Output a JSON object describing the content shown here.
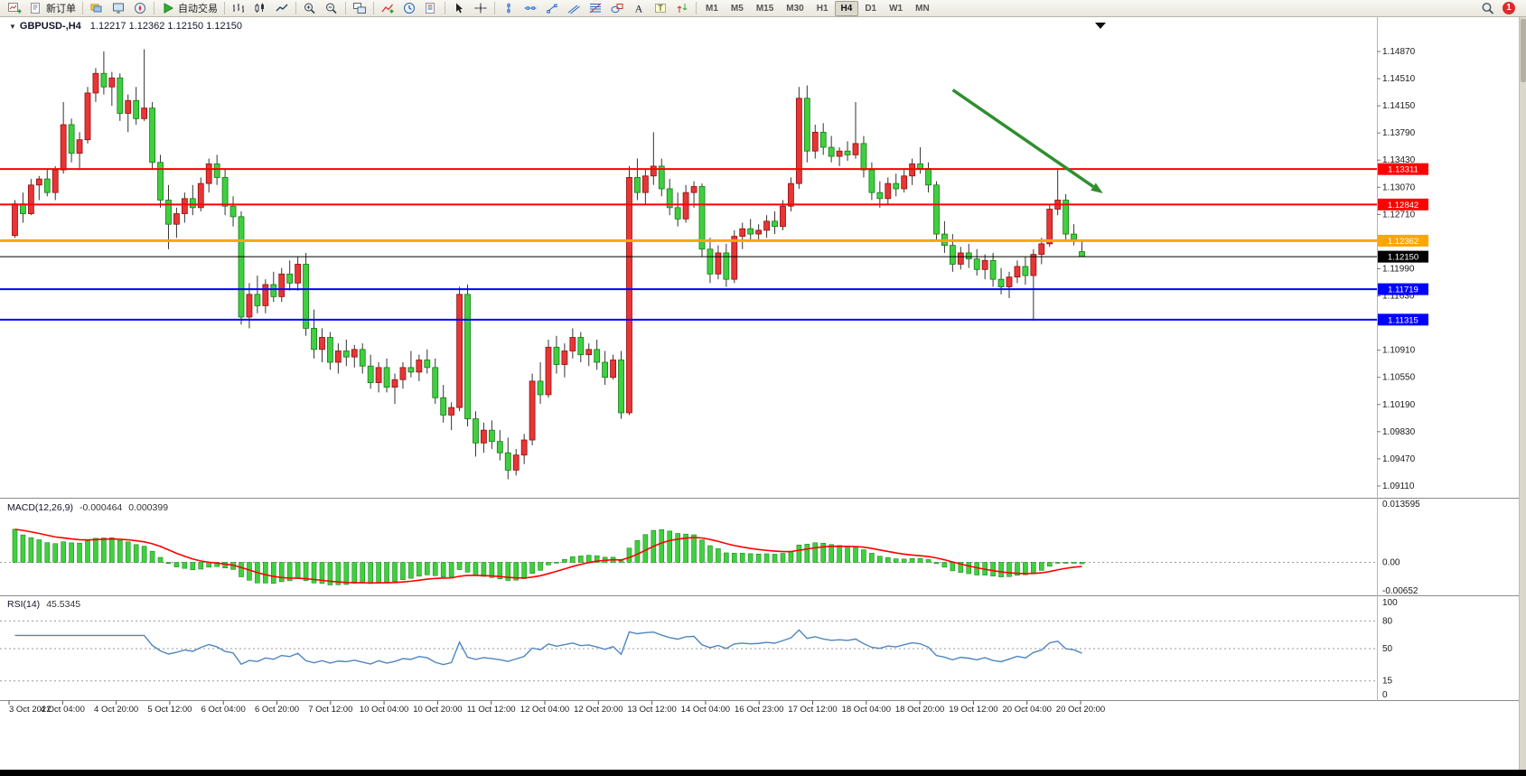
{
  "toolbar": {
    "groups": [
      [
        {
          "name": "new-chart",
          "icon": "chart-plus"
        },
        {
          "name": "new-order",
          "icon": "order-form",
          "label": "新订单"
        }
      ],
      [
        {
          "name": "profiles",
          "icon": "layers"
        },
        {
          "name": "market-watch",
          "icon": "monitor"
        },
        {
          "name": "navigator",
          "icon": "compass"
        }
      ],
      [
        {
          "name": "autotrading",
          "icon": "play",
          "label": "自动交易"
        }
      ],
      [
        {
          "name": "bar-chart",
          "icon": "bars"
        },
        {
          "name": "candlestick-chart",
          "icon": "candles"
        },
        {
          "name": "line-chart",
          "icon": "line"
        }
      ],
      [
        {
          "name": "zoom-in",
          "icon": "zoom-in"
        },
        {
          "name": "zoom-out",
          "icon": "zoom-out"
        }
      ],
      [
        {
          "name": "tile-windows",
          "icon": "tile"
        }
      ],
      [
        {
          "name": "indicator-list",
          "icon": "indicator"
        },
        {
          "name": "periods",
          "icon": "clock"
        },
        {
          "name": "templates",
          "icon": "template"
        }
      ],
      [
        {
          "name": "cursor",
          "icon": "cursor"
        },
        {
          "name": "crosshair",
          "icon": "crosshair"
        }
      ],
      [
        {
          "name": "vertical-line",
          "icon": "vline"
        },
        {
          "name": "horizontal-line",
          "icon": "hline"
        },
        {
          "name": "trendline",
          "icon": "trendline"
        },
        {
          "name": "equidistant-channel",
          "icon": "channel"
        },
        {
          "name": "fibonacci",
          "icon": "fibo"
        },
        {
          "name": "shapes",
          "icon": "shapes"
        },
        {
          "name": "text",
          "icon": "text-a"
        },
        {
          "name": "text-label",
          "icon": "text-t"
        },
        {
          "name": "arrows",
          "icon": "arrow-glyph"
        }
      ]
    ],
    "timeframes": {
      "labels": [
        "M1",
        "M5",
        "M15",
        "M30",
        "H1",
        "H4",
        "D1",
        "W1",
        "MN"
      ],
      "active": "H4"
    },
    "search": {
      "name": "search",
      "icon": "search"
    },
    "notification_count": "1"
  },
  "chart": {
    "title": "GBPUSD-,H4",
    "ohlc_text": "1.12217 1.12362 1.12150 1.12150"
  },
  "chart_data": {
    "type": "candlestick",
    "symbol": "GBPUSD-",
    "timeframe": "H4",
    "colors": {
      "bull": "#e83535",
      "bull_stroke": "#8f1010",
      "bear": "#3fd03f",
      "bear_stroke": "#157a15",
      "wick": "#333333",
      "macd_hist": "#3fd03f",
      "macd_hist_stroke": "#1e8a1e",
      "macd_signal": "#ff0000",
      "rsi_line": "#4f86c0",
      "arrow": "#2f8f2f"
    },
    "price_axis": {
      "labels": [
        "1.14870",
        "1.14510",
        "1.14150",
        "1.13790",
        "1.13430",
        "1.13070",
        "1.12710",
        "1.11990",
        "1.11630",
        "1.10910",
        "1.10550",
        "1.10190",
        "1.09830",
        "1.09470",
        "1.09110"
      ]
    },
    "hlines": [
      {
        "label": "1.13311",
        "price": 1.13311,
        "color": "#ff0000",
        "width": 2
      },
      {
        "label": "1.12842",
        "price": 1.12842,
        "color": "#ff0000",
        "width": 2
      },
      {
        "label": "1.12362",
        "price": 1.12362,
        "color": "#ffa500",
        "width": 3
      },
      {
        "label": "1.12150",
        "price": 1.1215,
        "color": "#000000",
        "width": 1
      },
      {
        "label": "1.11719",
        "price": 1.11719,
        "color": "#0000ff",
        "width": 2
      },
      {
        "label": "1.11315",
        "price": 1.11315,
        "color": "#0000ff",
        "width": 2
      }
    ],
    "arrow": {
      "x1_frac": 0.692,
      "price1": 1.1436,
      "x2_frac": 0.801,
      "price2": 1.1299
    },
    "time_labels": [
      "3 Oct 2022",
      "4 Oct 04:00",
      "4 Oct 20:00",
      "5 Oct 12:00",
      "6 Oct 04:00",
      "6 Oct 20:00",
      "7 Oct 12:00",
      "10 Oct 04:00",
      "10 Oct 20:00",
      "11 Oct 12:00",
      "12 Oct 04:00",
      "12 Oct 20:00",
      "13 Oct 12:00",
      "14 Oct 04:00",
      "16 Oct 23:00",
      "17 Oct 12:00",
      "18 Oct 04:00",
      "18 Oct 20:00",
      "19 Oct 12:00",
      "20 Oct 04:00",
      "20 Oct 20:00"
    ],
    "macd": {
      "label": "MACD(12,26,9)",
      "value_main": "-0.000464",
      "value_signal": "0.000399",
      "scale_top": "0.013595",
      "scale_zero": "0.00",
      "scale_bottom": "-0.00652",
      "vmax": 0.013595,
      "vmin": -0.00652
    },
    "rsi": {
      "label": "RSI(14)",
      "value": "45.5345",
      "levels": [
        80,
        50,
        15
      ],
      "scale_labels": [
        "100",
        "80",
        "50",
        "15",
        "0"
      ]
    },
    "candles": [
      [
        1.1243,
        1.129,
        1.124,
        1.1285
      ],
      [
        1.1285,
        1.13,
        1.126,
        1.1272
      ],
      [
        1.1272,
        1.1318,
        1.127,
        1.131
      ],
      [
        1.131,
        1.1322,
        1.129,
        1.1318
      ],
      [
        1.1318,
        1.133,
        1.1295,
        1.13
      ],
      [
        1.13,
        1.1335,
        1.129,
        1.133
      ],
      [
        1.133,
        1.142,
        1.1325,
        1.139
      ],
      [
        1.139,
        1.1398,
        1.134,
        1.1352
      ],
      [
        1.1352,
        1.138,
        1.133,
        1.137
      ],
      [
        1.137,
        1.144,
        1.1365,
        1.1432
      ],
      [
        1.1432,
        1.1465,
        1.142,
        1.1458
      ],
      [
        1.1458,
        1.1487,
        1.143,
        1.144
      ],
      [
        1.144,
        1.146,
        1.1415,
        1.1452
      ],
      [
        1.1452,
        1.1458,
        1.1395,
        1.1405
      ],
      [
        1.1405,
        1.143,
        1.138,
        1.1422
      ],
      [
        1.1422,
        1.144,
        1.139,
        1.1398
      ],
      [
        1.1398,
        1.149,
        1.1395,
        1.1412
      ],
      [
        1.1412,
        1.142,
        1.133,
        1.134
      ],
      [
        1.134,
        1.135,
        1.128,
        1.129
      ],
      [
        1.129,
        1.131,
        1.1225,
        1.1258
      ],
      [
        1.1258,
        1.128,
        1.124,
        1.1272
      ],
      [
        1.1272,
        1.13,
        1.126,
        1.1292
      ],
      [
        1.1292,
        1.131,
        1.127,
        1.128
      ],
      [
        1.128,
        1.132,
        1.1275,
        1.1312
      ],
      [
        1.1312,
        1.1345,
        1.13,
        1.1338
      ],
      [
        1.1338,
        1.135,
        1.131,
        1.132
      ],
      [
        1.132,
        1.1332,
        1.127,
        1.1282
      ],
      [
        1.1282,
        1.1295,
        1.1255,
        1.1268
      ],
      [
        1.1268,
        1.1275,
        1.1125,
        1.1135
      ],
      [
        1.1135,
        1.118,
        1.112,
        1.1165
      ],
      [
        1.1165,
        1.119,
        1.114,
        1.115
      ],
      [
        1.115,
        1.1185,
        1.114,
        1.1178
      ],
      [
        1.1178,
        1.1195,
        1.1155,
        1.1162
      ],
      [
        1.1162,
        1.12,
        1.1155,
        1.1192
      ],
      [
        1.1192,
        1.121,
        1.117,
        1.118
      ],
      [
        1.118,
        1.1215,
        1.117,
        1.1205
      ],
      [
        1.1205,
        1.122,
        1.111,
        1.112
      ],
      [
        1.112,
        1.1145,
        1.108,
        1.1092
      ],
      [
        1.1092,
        1.112,
        1.1075,
        1.1108
      ],
      [
        1.1108,
        1.1115,
        1.1065,
        1.1075
      ],
      [
        1.1075,
        1.11,
        1.106,
        1.109
      ],
      [
        1.109,
        1.1105,
        1.107,
        1.1082
      ],
      [
        1.1082,
        1.1098,
        1.1068,
        1.1092
      ],
      [
        1.1092,
        1.11,
        1.106,
        1.107
      ],
      [
        1.107,
        1.1085,
        1.104,
        1.1048
      ],
      [
        1.1048,
        1.1075,
        1.1035,
        1.1068
      ],
      [
        1.1068,
        1.108,
        1.1035,
        1.1042
      ],
      [
        1.1042,
        1.106,
        1.102,
        1.1052
      ],
      [
        1.1052,
        1.1075,
        1.104,
        1.1068
      ],
      [
        1.1068,
        1.109,
        1.1055,
        1.1062
      ],
      [
        1.1062,
        1.1085,
        1.105,
        1.1078
      ],
      [
        1.1078,
        1.1092,
        1.106,
        1.1068
      ],
      [
        1.1068,
        1.108,
        1.102,
        1.1028
      ],
      [
        1.1028,
        1.1045,
        1.0995,
        1.1005
      ],
      [
        1.1005,
        1.1022,
        1.0985,
        1.1015
      ],
      [
        1.1015,
        1.1175,
        1.101,
        1.1165
      ],
      [
        1.1165,
        1.1178,
        1.099,
        1.1
      ],
      [
        1.1,
        1.101,
        1.095,
        1.0968
      ],
      [
        1.0968,
        1.0995,
        1.0955,
        1.0985
      ],
      [
        1.0985,
        1.0998,
        1.096,
        1.097
      ],
      [
        1.097,
        1.0985,
        1.0945,
        1.0955
      ],
      [
        1.0955,
        1.0975,
        1.092,
        1.0932
      ],
      [
        1.0932,
        1.096,
        1.0925,
        1.0952
      ],
      [
        1.0952,
        1.098,
        1.094,
        1.0972
      ],
      [
        1.0972,
        1.106,
        1.0965,
        1.105
      ],
      [
        1.105,
        1.1075,
        1.102,
        1.1032
      ],
      [
        1.1032,
        1.1105,
        1.1028,
        1.1095
      ],
      [
        1.1095,
        1.111,
        1.106,
        1.1072
      ],
      [
        1.1072,
        1.11,
        1.1055,
        1.109
      ],
      [
        1.109,
        1.112,
        1.108,
        1.1108
      ],
      [
        1.1108,
        1.1115,
        1.1075,
        1.1085
      ],
      [
        1.1085,
        1.11,
        1.107,
        1.1092
      ],
      [
        1.1092,
        1.1105,
        1.1065,
        1.1075
      ],
      [
        1.1075,
        1.109,
        1.1045,
        1.1055
      ],
      [
        1.1055,
        1.1085,
        1.1052,
        1.1078
      ],
      [
        1.1078,
        1.109,
        1.1,
        1.1008
      ],
      [
        1.1008,
        1.1335,
        1.1005,
        1.132
      ],
      [
        1.132,
        1.1345,
        1.129,
        1.13
      ],
      [
        1.13,
        1.133,
        1.1285,
        1.1322
      ],
      [
        1.1322,
        1.138,
        1.131,
        1.1335
      ],
      [
        1.1335,
        1.1345,
        1.1295,
        1.1305
      ],
      [
        1.1305,
        1.1318,
        1.127,
        1.128
      ],
      [
        1.128,
        1.13,
        1.1255,
        1.1265
      ],
      [
        1.1265,
        1.131,
        1.126,
        1.13
      ],
      [
        1.13,
        1.1315,
        1.128,
        1.1308
      ],
      [
        1.1308,
        1.1312,
        1.1215,
        1.1225
      ],
      [
        1.1225,
        1.124,
        1.118,
        1.1192
      ],
      [
        1.1192,
        1.123,
        1.1185,
        1.122
      ],
      [
        1.122,
        1.1232,
        1.1175,
        1.1185
      ],
      [
        1.1185,
        1.125,
        1.118,
        1.1242
      ],
      [
        1.1242,
        1.126,
        1.1225,
        1.1252
      ],
      [
        1.1252,
        1.1265,
        1.1235,
        1.1245
      ],
      [
        1.1245,
        1.1258,
        1.1238,
        1.125
      ],
      [
        1.125,
        1.127,
        1.124,
        1.1262
      ],
      [
        1.1262,
        1.1275,
        1.1245,
        1.1255
      ],
      [
        1.1255,
        1.129,
        1.125,
        1.1282
      ],
      [
        1.1282,
        1.132,
        1.1275,
        1.1312
      ],
      [
        1.1312,
        1.144,
        1.1305,
        1.1425
      ],
      [
        1.1425,
        1.1442,
        1.134,
        1.1355
      ],
      [
        1.1355,
        1.139,
        1.1345,
        1.138
      ],
      [
        1.138,
        1.1392,
        1.135,
        1.136
      ],
      [
        1.136,
        1.1375,
        1.134,
        1.1348
      ],
      [
        1.1348,
        1.136,
        1.1335,
        1.1355
      ],
      [
        1.1355,
        1.1368,
        1.1342,
        1.135
      ],
      [
        1.135,
        1.142,
        1.1345,
        1.1365
      ],
      [
        1.1365,
        1.1375,
        1.132,
        1.133
      ],
      [
        1.133,
        1.134,
        1.129,
        1.13
      ],
      [
        1.13,
        1.1315,
        1.128,
        1.1292
      ],
      [
        1.1292,
        1.132,
        1.1285,
        1.1312
      ],
      [
        1.1312,
        1.1325,
        1.1295,
        1.1305
      ],
      [
        1.1305,
        1.133,
        1.13,
        1.1322
      ],
      [
        1.1322,
        1.1345,
        1.131,
        1.1338
      ],
      [
        1.1338,
        1.136,
        1.1325,
        1.1332
      ],
      [
        1.1332,
        1.134,
        1.13,
        1.131
      ],
      [
        1.131,
        1.1315,
        1.1235,
        1.1245
      ],
      [
        1.1245,
        1.1262,
        1.122,
        1.123
      ],
      [
        1.123,
        1.1245,
        1.1195,
        1.1205
      ],
      [
        1.1205,
        1.1228,
        1.1198,
        1.122
      ],
      [
        1.122,
        1.1232,
        1.12,
        1.1212
      ],
      [
        1.1212,
        1.1225,
        1.119,
        1.1198
      ],
      [
        1.1198,
        1.1218,
        1.1185,
        1.121
      ],
      [
        1.121,
        1.122,
        1.1175,
        1.1185
      ],
      [
        1.1185,
        1.12,
        1.1165,
        1.1175
      ],
      [
        1.1175,
        1.1195,
        1.116,
        1.1188
      ],
      [
        1.1188,
        1.121,
        1.118,
        1.1202
      ],
      [
        1.1202,
        1.1215,
        1.1178,
        1.119
      ],
      [
        1.119,
        1.1225,
        1.113,
        1.1218
      ],
      [
        1.1218,
        1.124,
        1.1205,
        1.1232
      ],
      [
        1.1232,
        1.1285,
        1.1228,
        1.1278
      ],
      [
        1.1278,
        1.133,
        1.127,
        1.129
      ],
      [
        1.129,
        1.1298,
        1.1235,
        1.1245
      ],
      [
        1.1245,
        1.1258,
        1.123,
        1.1238
      ],
      [
        1.12217,
        1.12362,
        1.1215,
        1.1215
      ]
    ]
  }
}
